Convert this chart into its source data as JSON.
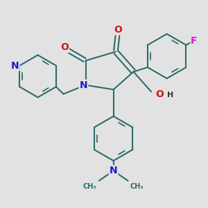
{
  "background_color": "#e2e2e2",
  "bond_color": "#2d6b6b",
  "bond_width": 1.5,
  "atom_colors": {
    "N": "#1a1acc",
    "O": "#cc1a1a",
    "F": "#cc22cc",
    "H": "#333333",
    "C": "#2d6b6b"
  },
  "font_size_atom": 10,
  "font_size_small": 8,
  "dbo": 0.018
}
